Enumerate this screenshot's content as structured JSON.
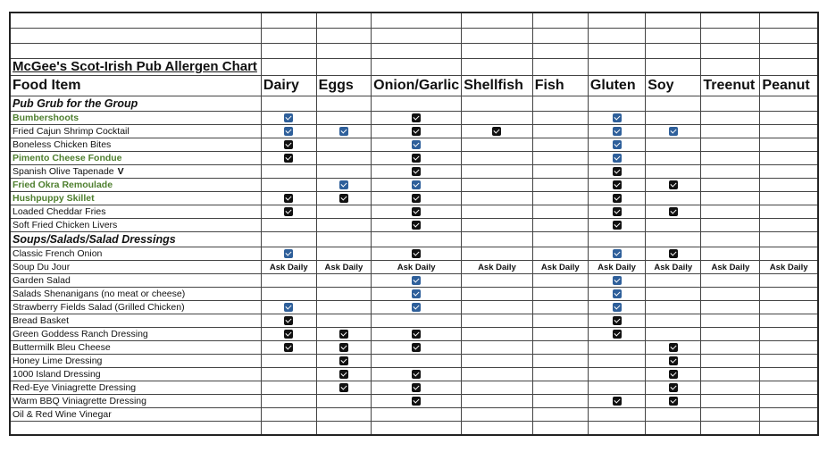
{
  "title": "McGee's Scot-Irish Pub Allergen Chart",
  "colors": {
    "blue_check": "#2e5f9a",
    "black_check": "#111111",
    "highlight_text": "#4e7f2e"
  },
  "header": [
    "Food Item",
    "Dairy",
    "Eggs",
    "Onion/Garlic",
    "Shellfish",
    "Fish",
    "Gluten",
    "Soy",
    "Treenut",
    "Peanut"
  ],
  "cell_legend": {
    "b": "checked (blue)",
    "k": "checked (black)"
  },
  "ask_label": "Ask Daily",
  "sections": [
    {
      "title": "Pub Grub for the Group",
      "items": [
        {
          "name": "Bumbershoots",
          "highlight": true,
          "cells": [
            "b",
            "",
            "k",
            "",
            "",
            "b",
            "",
            "",
            ""
          ]
        },
        {
          "name": "Fried Cajun Shrimp Cocktail",
          "cells": [
            "b",
            "b",
            "k",
            "k",
            "",
            "b",
            "b",
            "",
            ""
          ]
        },
        {
          "name": "Boneless Chicken Bites",
          "cells": [
            "k",
            "",
            "b",
            "",
            "",
            "b",
            "",
            "",
            ""
          ]
        },
        {
          "name": "Pimento Cheese Fondue",
          "highlight": true,
          "cells": [
            "k",
            "",
            "k",
            "",
            "",
            "b",
            "",
            "",
            ""
          ]
        },
        {
          "name": "Spanish Olive Tapenade",
          "tag": "V",
          "cells": [
            "",
            "",
            "k",
            "",
            "",
            "k",
            "",
            "",
            ""
          ]
        },
        {
          "name": "Fried Okra Remoulade",
          "highlight": true,
          "cells": [
            "",
            "b",
            "b",
            "",
            "",
            "k",
            "k",
            "",
            ""
          ]
        },
        {
          "name": "Hushpuppy Skillet",
          "highlight": true,
          "cells": [
            "k",
            "k",
            "k",
            "",
            "",
            "k",
            "",
            "",
            ""
          ]
        },
        {
          "name": "Loaded Cheddar Fries",
          "cells": [
            "k",
            "",
            "k",
            "",
            "",
            "k",
            "k",
            "",
            ""
          ]
        },
        {
          "name": "Soft Fried Chicken Livers",
          "cells": [
            "",
            "",
            "k",
            "",
            "",
            "k",
            "",
            "",
            ""
          ]
        }
      ]
    },
    {
      "title": "Soups/Salads/Salad Dressings",
      "items": [
        {
          "name": "Classic French Onion",
          "cells": [
            "b",
            "",
            "k",
            "",
            "",
            "b",
            "k",
            "",
            ""
          ]
        },
        {
          "name": "Soup Du Jour",
          "cells": [
            "ask",
            "ask",
            "ask",
            "ask",
            "ask",
            "ask",
            "ask",
            "ask",
            "ask"
          ]
        },
        {
          "name": "Garden Salad",
          "cells": [
            "",
            "",
            "b",
            "",
            "",
            "b",
            "",
            "",
            ""
          ]
        },
        {
          "name": "Salads Shenanigans (no meat or cheese)",
          "cells": [
            "",
            "",
            "b",
            "",
            "",
            "b",
            "",
            "",
            ""
          ]
        },
        {
          "name": "Strawberry Fields Salad (Grilled Chicken)",
          "cells": [
            "b",
            "",
            "b",
            "",
            "",
            "b",
            "",
            "",
            ""
          ]
        },
        {
          "name": "Bread Basket",
          "cells": [
            "k",
            "",
            "",
            "",
            "",
            "k",
            "",
            "",
            ""
          ]
        },
        {
          "name": "Green Goddess Ranch Dressing",
          "cells": [
            "k",
            "k",
            "k",
            "",
            "",
            "k",
            "",
            "",
            ""
          ]
        },
        {
          "name": "Buttermilk Bleu Cheese",
          "cells": [
            "k",
            "k",
            "k",
            "",
            "",
            "",
            "k",
            "",
            ""
          ]
        },
        {
          "name": "Honey Lime Dressing",
          "cells": [
            "",
            "k",
            "",
            "",
            "",
            "",
            "k",
            "",
            ""
          ]
        },
        {
          "name": "1000 Island Dressing",
          "cells": [
            "",
            "k",
            "k",
            "",
            "",
            "",
            "k",
            "",
            ""
          ]
        },
        {
          "name": "Red-Eye Viniagrette  Dressing",
          "cells": [
            "",
            "k",
            "k",
            "",
            "",
            "",
            "k",
            "",
            ""
          ]
        },
        {
          "name": "Warm BBQ Viniagrette Dressing",
          "cells": [
            "",
            "",
            "k",
            "",
            "",
            "k",
            "k",
            "",
            ""
          ]
        },
        {
          "name": "Oil & Red Wine Vinegar",
          "cells": [
            "",
            "",
            "",
            "",
            "",
            "",
            "",
            "",
            ""
          ]
        }
      ]
    }
  ]
}
